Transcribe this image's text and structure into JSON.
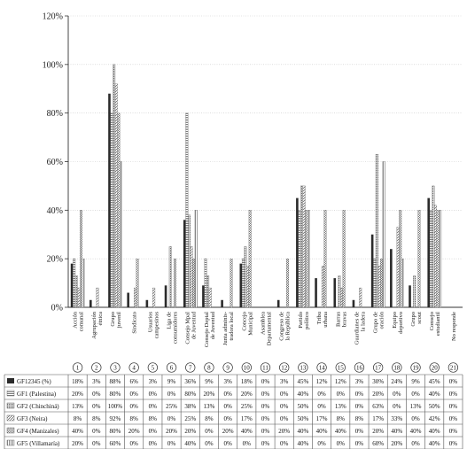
{
  "chart_data": {
    "type": "bar",
    "ylim": [
      0,
      120
    ],
    "yticks": [
      "0%",
      "20%",
      "40%",
      "60%",
      "80%",
      "100%",
      "120%"
    ],
    "ytick_values": [
      0,
      20,
      40,
      60,
      80,
      100,
      120
    ],
    "grid": true,
    "legend": "table-bottom",
    "categories": [
      {
        "num": "1",
        "lines": [
          "Acción",
          "comunal"
        ]
      },
      {
        "num": "2",
        "lines": [
          "Agrupación",
          "étnica"
        ]
      },
      {
        "num": "3",
        "lines": [
          "Grupo",
          "juvenil"
        ]
      },
      {
        "num": "4",
        "lines": [
          "Sindicato"
        ]
      },
      {
        "num": "5",
        "lines": [
          "Usuarios",
          "campesinos"
        ]
      },
      {
        "num": "6",
        "lines": [
          "Liga de",
          "consumidores"
        ]
      },
      {
        "num": "7",
        "lines": [
          "Consejo Mpal",
          "de Juventud"
        ]
      },
      {
        "num": "8",
        "lines": [
          "Consejo Deptal",
          "de Juventud"
        ]
      },
      {
        "num": "9",
        "lines": [
          "Junta adminis-",
          "tradora local"
        ]
      },
      {
        "num": "10",
        "lines": [
          "Concejo",
          "Municipal"
        ]
      },
      {
        "num": "11",
        "lines": [
          "Asamblea",
          "Departamental"
        ]
      },
      {
        "num": "12",
        "lines": [
          "Congreso de",
          "la República"
        ]
      },
      {
        "num": "13",
        "lines": [
          "Partido",
          "político"
        ]
      },
      {
        "num": "14",
        "lines": [
          "Tribu",
          "urbana"
        ]
      },
      {
        "num": "15",
        "lines": [
          "Barras",
          "bravas"
        ]
      },
      {
        "num": "16",
        "lines": [
          "Guardianes de",
          "la ladera"
        ]
      },
      {
        "num": "17",
        "lines": [
          "Grupo de",
          "oración"
        ]
      },
      {
        "num": "18",
        "lines": [
          "Equipo",
          "deportivo"
        ]
      },
      {
        "num": "19",
        "lines": [
          "Grupo",
          "scout"
        ]
      },
      {
        "num": "20",
        "lines": [
          "Consejo",
          "estudiantil"
        ]
      },
      {
        "num": "21",
        "lines": [
          "No responde"
        ]
      }
    ],
    "series": [
      {
        "name": "GF12345 (%)",
        "color": "#2b2b2b",
        "pattern": "solid",
        "values": [
          18,
          3,
          88,
          6,
          3,
          9,
          36,
          9,
          3,
          18,
          0,
          3,
          45,
          12,
          12,
          3,
          30,
          24,
          9,
          45,
          0
        ],
        "labels": [
          "18%",
          "3%",
          "88%",
          "6%",
          "3%",
          "9%",
          "36%",
          "9%",
          "3%",
          "18%",
          "0%",
          "3%",
          "45%",
          "12%",
          "12%",
          "3%",
          "30%",
          "24%",
          "9%",
          "45%",
          "0%"
        ]
      },
      {
        "name": "GF1 (Palestina)",
        "color": "#8a8a8a",
        "pattern": "hstripe",
        "values": [
          20,
          0,
          80,
          0,
          0,
          0,
          80,
          20,
          0,
          20,
          0,
          0,
          40,
          0,
          0,
          0,
          20,
          0,
          0,
          40,
          0
        ],
        "labels": [
          "20%",
          "0%",
          "80%",
          "0%",
          "0%",
          "0%",
          "80%",
          "20%",
          "0%",
          "20%",
          "0%",
          "0%",
          "40%",
          "0%",
          "0%",
          "0%",
          "20%",
          "0%",
          "0%",
          "40%",
          "0%"
        ]
      },
      {
        "name": "GF2 (Chinchiná)",
        "color": "#9a9a9a",
        "pattern": "dots",
        "values": [
          13,
          0,
          100,
          0,
          0,
          25,
          38,
          13,
          0,
          25,
          0,
          0,
          50,
          0,
          13,
          0,
          63,
          0,
          13,
          50,
          0
        ],
        "labels": [
          "13%",
          "0%",
          "100%",
          "0%",
          "0%",
          "25%",
          "38%",
          "13%",
          "0%",
          "25%",
          "0%",
          "0%",
          "50%",
          "0%",
          "13%",
          "0%",
          "63%",
          "0%",
          "13%",
          "50%",
          "0%"
        ]
      },
      {
        "name": "GF3 (Neira)",
        "color": "#b0b0b0",
        "pattern": "diag",
        "values": [
          8,
          8,
          92,
          8,
          8,
          0,
          25,
          8,
          0,
          17,
          0,
          0,
          50,
          17,
          8,
          8,
          17,
          33,
          0,
          42,
          0
        ],
        "labels": [
          "8%",
          "8%",
          "92%",
          "8%",
          "8%",
          "0%",
          "25%",
          "8%",
          "0%",
          "17%",
          "0%",
          "0%",
          "50%",
          "17%",
          "8%",
          "8%",
          "17%",
          "33%",
          "0%",
          "42%",
          "0%"
        ]
      },
      {
        "name": "GF4 (Manizales)",
        "color": "#a0a0a0",
        "pattern": "checker",
        "values": [
          40,
          0,
          80,
          20,
          0,
          20,
          20,
          0,
          20,
          40,
          0,
          20,
          40,
          40,
          40,
          0,
          20,
          40,
          40,
          40,
          0
        ],
        "labels": [
          "40%",
          "0%",
          "80%",
          "20%",
          "0%",
          "20%",
          "20%",
          "0%",
          "20%",
          "40%",
          "0%",
          "20%",
          "40%",
          "40%",
          "40%",
          "0%",
          "20%",
          "40%",
          "40%",
          "40%",
          "0%"
        ]
      },
      {
        "name": "GF5 (Villamaría)",
        "color": "#c8c8c8",
        "pattern": "vstripe",
        "values": [
          20,
          0,
          60,
          0,
          0,
          0,
          40,
          0,
          0,
          0,
          0,
          0,
          40,
          0,
          0,
          0,
          60,
          20,
          0,
          40,
          0
        ],
        "labels": [
          "20%",
          "0%",
          "60%",
          "0%",
          "0%",
          "0%",
          "40%",
          "0%",
          "0%",
          "0%",
          "0%",
          "0%",
          "40%",
          "0%",
          "0%",
          "0%",
          "60%",
          "20%",
          "0%",
          "40%",
          "0%"
        ]
      }
    ]
  }
}
